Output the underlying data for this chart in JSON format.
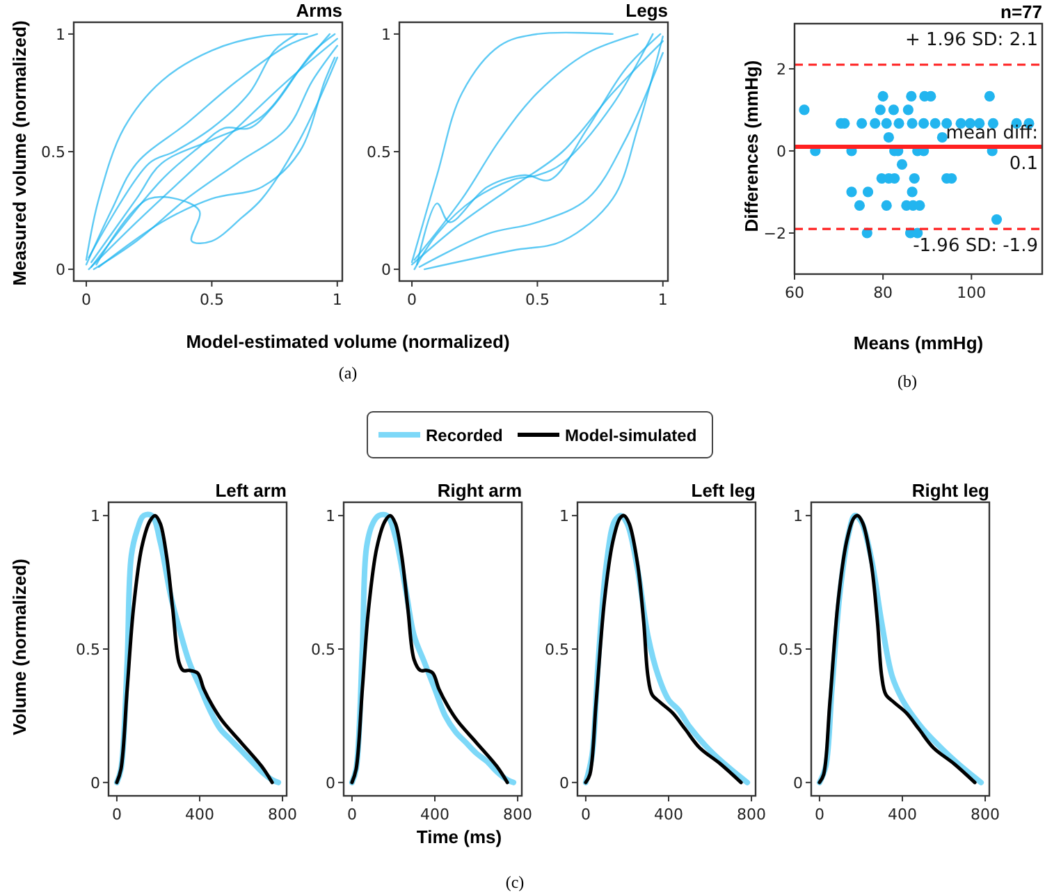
{
  "chart_data": [
    {
      "type": "line",
      "title": "Arms",
      "xlabel": "Model-estimated volume (normalized)",
      "ylabel": "Measured volume (normalized)",
      "annotations": [
        "(a)"
      ],
      "xlim": [
        -0.05,
        1.02
      ],
      "ylim": [
        -0.05,
        1.05
      ],
      "xticks": [
        0,
        0.5,
        1
      ],
      "yticks": [
        0,
        0.5,
        1
      ],
      "series": [
        {
          "color": "#1ab4f0",
          "x": [
            0,
            0.1,
            0.2,
            0.4,
            0.6,
            0.8,
            0.92
          ],
          "values": [
            0.02,
            0.25,
            0.45,
            0.62,
            0.8,
            0.95,
            1
          ]
        },
        {
          "color": "#1ab4f0",
          "x": [
            0.01,
            0.2,
            0.4,
            0.6,
            0.8,
            1
          ],
          "values": [
            0,
            0.2,
            0.4,
            0.6,
            0.8,
            0.98
          ]
        },
        {
          "color": "#1ab4f0",
          "x": [
            0.02,
            0.2,
            0.3,
            0.5,
            0.7,
            0.85,
            0.97
          ],
          "values": [
            0.03,
            0.3,
            0.45,
            0.55,
            0.65,
            0.85,
            1
          ]
        },
        {
          "color": "#1ab4f0",
          "x": [
            0.03,
            0.2,
            0.4,
            0.6,
            0.8,
            0.9,
            1
          ],
          "values": [
            0,
            0.12,
            0.3,
            0.45,
            0.6,
            0.8,
            0.95
          ]
        },
        {
          "color": "#1ab4f0",
          "x": [
            0.05,
            0.3,
            0.5,
            0.7,
            0.85,
            0.95,
            0.99
          ],
          "values": [
            0.01,
            0.2,
            0.3,
            0.35,
            0.5,
            0.8,
            0.9
          ]
        },
        {
          "color": "#1ab4f0",
          "x": [
            0,
            0.05,
            0.15,
            0.3,
            0.5,
            0.7,
            0.88
          ],
          "values": [
            0.04,
            0.3,
            0.6,
            0.8,
            0.93,
            0.99,
            1
          ]
        },
        {
          "color": "#1ab4f0",
          "x": [
            0.01,
            0.25,
            0.35,
            0.5,
            0.65,
            0.75,
            0.84
          ],
          "values": [
            0.05,
            0.45,
            0.5,
            0.6,
            0.75,
            0.93,
            1
          ]
        },
        {
          "color": "#1ab4f0",
          "x": [
            0.02,
            0.3,
            0.45,
            0.55,
            0.65,
            0.75,
            0.9,
            0.99
          ],
          "values": [
            0.01,
            0.38,
            0.52,
            0.6,
            0.6,
            0.7,
            0.92,
            1
          ]
        },
        {
          "color": "#1ab4f0",
          "x": [
            0.04,
            0.25,
            0.45,
            0.42,
            0.5,
            0.62,
            0.7,
            0.85,
            1
          ],
          "values": [
            0.02,
            0.3,
            0.25,
            0.12,
            0.12,
            0.22,
            0.3,
            0.55,
            0.9
          ]
        }
      ]
    },
    {
      "type": "line",
      "title": "Legs",
      "xlim": [
        -0.05,
        1.02
      ],
      "ylim": [
        -0.05,
        1.05
      ],
      "xticks": [
        0,
        0.5,
        1
      ],
      "yticks": [
        0,
        0.5,
        1
      ],
      "series": [
        {
          "color": "#1ab4f0",
          "x": [
            0,
            0.2,
            0.4,
            0.6,
            0.8,
            1
          ],
          "values": [
            0.02,
            0.2,
            0.35,
            0.5,
            0.75,
            0.97
          ]
        },
        {
          "color": "#1ab4f0",
          "x": [
            0.01,
            0.1,
            0.25,
            0.4,
            0.5,
            0.6,
            0.8,
            0.96
          ],
          "values": [
            0,
            0.15,
            0.3,
            0.38,
            0.4,
            0.45,
            0.7,
            1
          ]
        },
        {
          "color": "#1ab4f0",
          "x": [
            0.03,
            0.3,
            0.5,
            0.7,
            0.85,
            1
          ],
          "values": [
            0.01,
            0.15,
            0.2,
            0.3,
            0.55,
            0.92
          ]
        },
        {
          "color": "#1ab4f0",
          "x": [
            0,
            0.1,
            0.2,
            0.35,
            0.5,
            0.8
          ],
          "values": [
            0.03,
            0.4,
            0.75,
            0.95,
            1,
            1
          ]
        },
        {
          "color": "#1ab4f0",
          "x": [
            0.02,
            0.1,
            0.15,
            0.3,
            0.45,
            0.55,
            0.7,
            0.85,
            0.99
          ],
          "values": [
            0.02,
            0.28,
            0.2,
            0.35,
            0.4,
            0.38,
            0.6,
            0.85,
            1
          ]
        },
        {
          "color": "#1ab4f0",
          "x": [
            0.05,
            0.4,
            0.6,
            0.8,
            0.9,
            1
          ],
          "values": [
            0,
            0.08,
            0.12,
            0.3,
            0.6,
            0.99
          ]
        },
        {
          "color": "#1ab4f0",
          "x": [
            0.01,
            0.2,
            0.35,
            0.5,
            0.7,
            0.9
          ],
          "values": [
            0.04,
            0.3,
            0.55,
            0.75,
            0.92,
            1
          ]
        }
      ]
    },
    {
      "type": "scatter",
      "title": "n=77",
      "xlabel": "Means (mmHg)",
      "ylabel": "Differences (mmHg)",
      "annotations": [
        "(b)"
      ],
      "marker": "circle",
      "xlim": [
        60,
        116
      ],
      "ylim": [
        -3,
        3.1
      ],
      "xticks": [
        60,
        80,
        100
      ],
      "yticks": [
        {
          "value": -2,
          "label": "−2"
        },
        0,
        2
      ],
      "ref_lines": [
        {
          "axis": "y",
          "value": 2.1,
          "label": "+ 1.96 SD: 2.1",
          "color": "#ff2020",
          "line_style": "dashed"
        },
        {
          "axis": "y",
          "value": 0.1,
          "label": "mean diff: 0.1",
          "color": "#ff2020",
          "line_style": "solid"
        },
        {
          "axis": "y",
          "value": -1.9,
          "label": "-1.96 SD: -1.9",
          "color": "#ff2020",
          "line_style": "dashed"
        }
      ],
      "series": [
        {
          "color": "#22b5ef",
          "x": [
            62.2,
            64.7,
            70.5,
            71.3,
            75.2,
            78.2,
            80.8,
            83.6,
            86.6,
            89.2,
            91.8,
            94.4,
            97.6,
            99.7,
            101.8,
            104.9,
            110.2,
            113,
            80,
            86.4,
            89.4,
            90.8,
            104.1,
            79.4,
            82.4,
            85.7,
            81.3,
            93.4,
            72.9,
            82.6,
            83.4,
            87.8,
            89.2,
            104.7,
            84.3,
            79.7,
            81.3,
            82.6,
            87.1,
            94.4,
            95.5,
            72.9,
            76.6,
            86.6,
            74.7,
            80.8,
            85.3,
            86.8,
            88.3,
            105.7,
            76.4,
            86.2,
            87.8
          ],
          "values": [
            1,
            0,
            0.67,
            0.67,
            0.67,
            0.67,
            0.67,
            0.67,
            0.67,
            0.67,
            0.67,
            0.67,
            0.67,
            0.67,
            0.67,
            0.67,
            0.67,
            0.67,
            1.33,
            1.33,
            1.33,
            1.33,
            1.33,
            1,
            1,
            1,
            0.33,
            0.33,
            0,
            0,
            0,
            0,
            0,
            0,
            -0.33,
            -0.67,
            -0.67,
            -0.67,
            -0.67,
            -0.67,
            -0.67,
            -1,
            -1,
            -1,
            -1.33,
            -1.33,
            -1.33,
            -1.33,
            -1.33,
            -1.67,
            -2,
            -2,
            -2
          ]
        }
      ]
    },
    {
      "type": "line",
      "title": "Left arm",
      "ylabel": "Volume (normalized)",
      "legend": "top",
      "xlim": [
        -40,
        820
      ],
      "ylim": [
        -0.05,
        1.05
      ],
      "xticks": [
        0,
        400,
        800
      ],
      "yticks": [
        0,
        0.5,
        1
      ],
      "series": [
        {
          "name": "Recorded",
          "color": "#7dd8f8",
          "x": [
            0,
            20,
            50,
            70,
            100,
            130,
            170,
            210,
            260,
            300,
            350,
            400,
            450,
            500,
            550,
            600,
            650,
            700,
            750,
            780
          ],
          "values": [
            0,
            0.05,
            0.45,
            0.85,
            0.95,
            1,
            1,
            0.9,
            0.7,
            0.58,
            0.45,
            0.36,
            0.27,
            0.2,
            0.16,
            0.12,
            0.08,
            0.04,
            0.01,
            0
          ]
        },
        {
          "name": "Model-simulated",
          "color": "#000000",
          "x": [
            0,
            20,
            50,
            80,
            120,
            160,
            185,
            210,
            240,
            270,
            300,
            320,
            350,
            390,
            420,
            460,
            510,
            600,
            700,
            750
          ],
          "values": [
            0,
            0.05,
            0.35,
            0.65,
            0.88,
            0.98,
            1,
            0.97,
            0.85,
            0.65,
            0.45,
            0.42,
            0.42,
            0.41,
            0.35,
            0.29,
            0.23,
            0.15,
            0.06,
            0
          ]
        }
      ]
    },
    {
      "type": "line",
      "title": "Right arm",
      "xlabel": "Time (ms)",
      "annotations": [
        "(c)"
      ],
      "xlim": [
        -40,
        820
      ],
      "ylim": [
        -0.05,
        1.05
      ],
      "xticks": [
        0,
        400,
        800
      ],
      "yticks": [
        0,
        0.5,
        1
      ],
      "series": [
        {
          "color": "#7dd8f8",
          "x": [
            0,
            20,
            50,
            70,
            100,
            130,
            170,
            210,
            260,
            300,
            350,
            400,
            450,
            500,
            550,
            600,
            650,
            700,
            750,
            780
          ],
          "values": [
            0,
            0.05,
            0.5,
            0.88,
            0.97,
            1,
            1,
            0.92,
            0.72,
            0.55,
            0.45,
            0.35,
            0.25,
            0.19,
            0.15,
            0.11,
            0.08,
            0.04,
            0.01,
            0
          ]
        },
        {
          "color": "#000000",
          "x": [
            0,
            20,
            50,
            80,
            120,
            160,
            185,
            210,
            240,
            270,
            300,
            330,
            360,
            390,
            420,
            460,
            510,
            600,
            700,
            750
          ],
          "values": [
            0,
            0.05,
            0.35,
            0.65,
            0.88,
            0.98,
            1,
            0.97,
            0.85,
            0.65,
            0.46,
            0.42,
            0.42,
            0.41,
            0.35,
            0.29,
            0.23,
            0.15,
            0.06,
            0
          ]
        }
      ]
    },
    {
      "type": "line",
      "title": "Left leg",
      "xlim": [
        -40,
        820
      ],
      "ylim": [
        -0.05,
        1.05
      ],
      "xticks": [
        0,
        400,
        800
      ],
      "yticks": [
        0,
        0.5,
        1
      ],
      "series": [
        {
          "color": "#7dd8f8",
          "x": [
            0,
            30,
            60,
            100,
            140,
            170,
            200,
            250,
            300,
            350,
            400,
            450,
            500,
            600,
            700,
            780
          ],
          "values": [
            0,
            0.1,
            0.45,
            0.82,
            0.98,
            1,
            0.97,
            0.8,
            0.55,
            0.4,
            0.31,
            0.27,
            0.21,
            0.12,
            0.05,
            0
          ]
        },
        {
          "color": "#000000",
          "x": [
            0,
            20,
            50,
            90,
            130,
            165,
            185,
            210,
            250,
            280,
            300,
            320,
            360,
            420,
            480,
            550,
            650,
            750
          ],
          "values": [
            0,
            0.03,
            0.3,
            0.68,
            0.9,
            0.99,
            1,
            0.97,
            0.82,
            0.6,
            0.4,
            0.33,
            0.3,
            0.26,
            0.2,
            0.13,
            0.07,
            0
          ]
        }
      ]
    },
    {
      "type": "line",
      "title": "Right leg",
      "xlim": [
        -40,
        820
      ],
      "ylim": [
        -0.05,
        1.05
      ],
      "xticks": [
        0,
        400,
        800
      ],
      "yticks": [
        0,
        0.5,
        1
      ],
      "series": [
        {
          "color": "#7dd8f8",
          "x": [
            0,
            30,
            60,
            100,
            140,
            170,
            200,
            250,
            300,
            350,
            400,
            450,
            500,
            600,
            700,
            780
          ],
          "values": [
            0,
            0.06,
            0.35,
            0.72,
            0.93,
            1,
            0.98,
            0.84,
            0.6,
            0.4,
            0.31,
            0.25,
            0.2,
            0.12,
            0.05,
            0
          ]
        },
        {
          "color": "#000000",
          "x": [
            0,
            20,
            50,
            90,
            130,
            165,
            185,
            210,
            250,
            280,
            300,
            320,
            360,
            420,
            480,
            550,
            650,
            750
          ],
          "values": [
            0,
            0.03,
            0.3,
            0.68,
            0.9,
            0.99,
            1,
            0.97,
            0.82,
            0.6,
            0.4,
            0.33,
            0.3,
            0.26,
            0.2,
            0.13,
            0.07,
            0
          ]
        }
      ]
    }
  ]
}
